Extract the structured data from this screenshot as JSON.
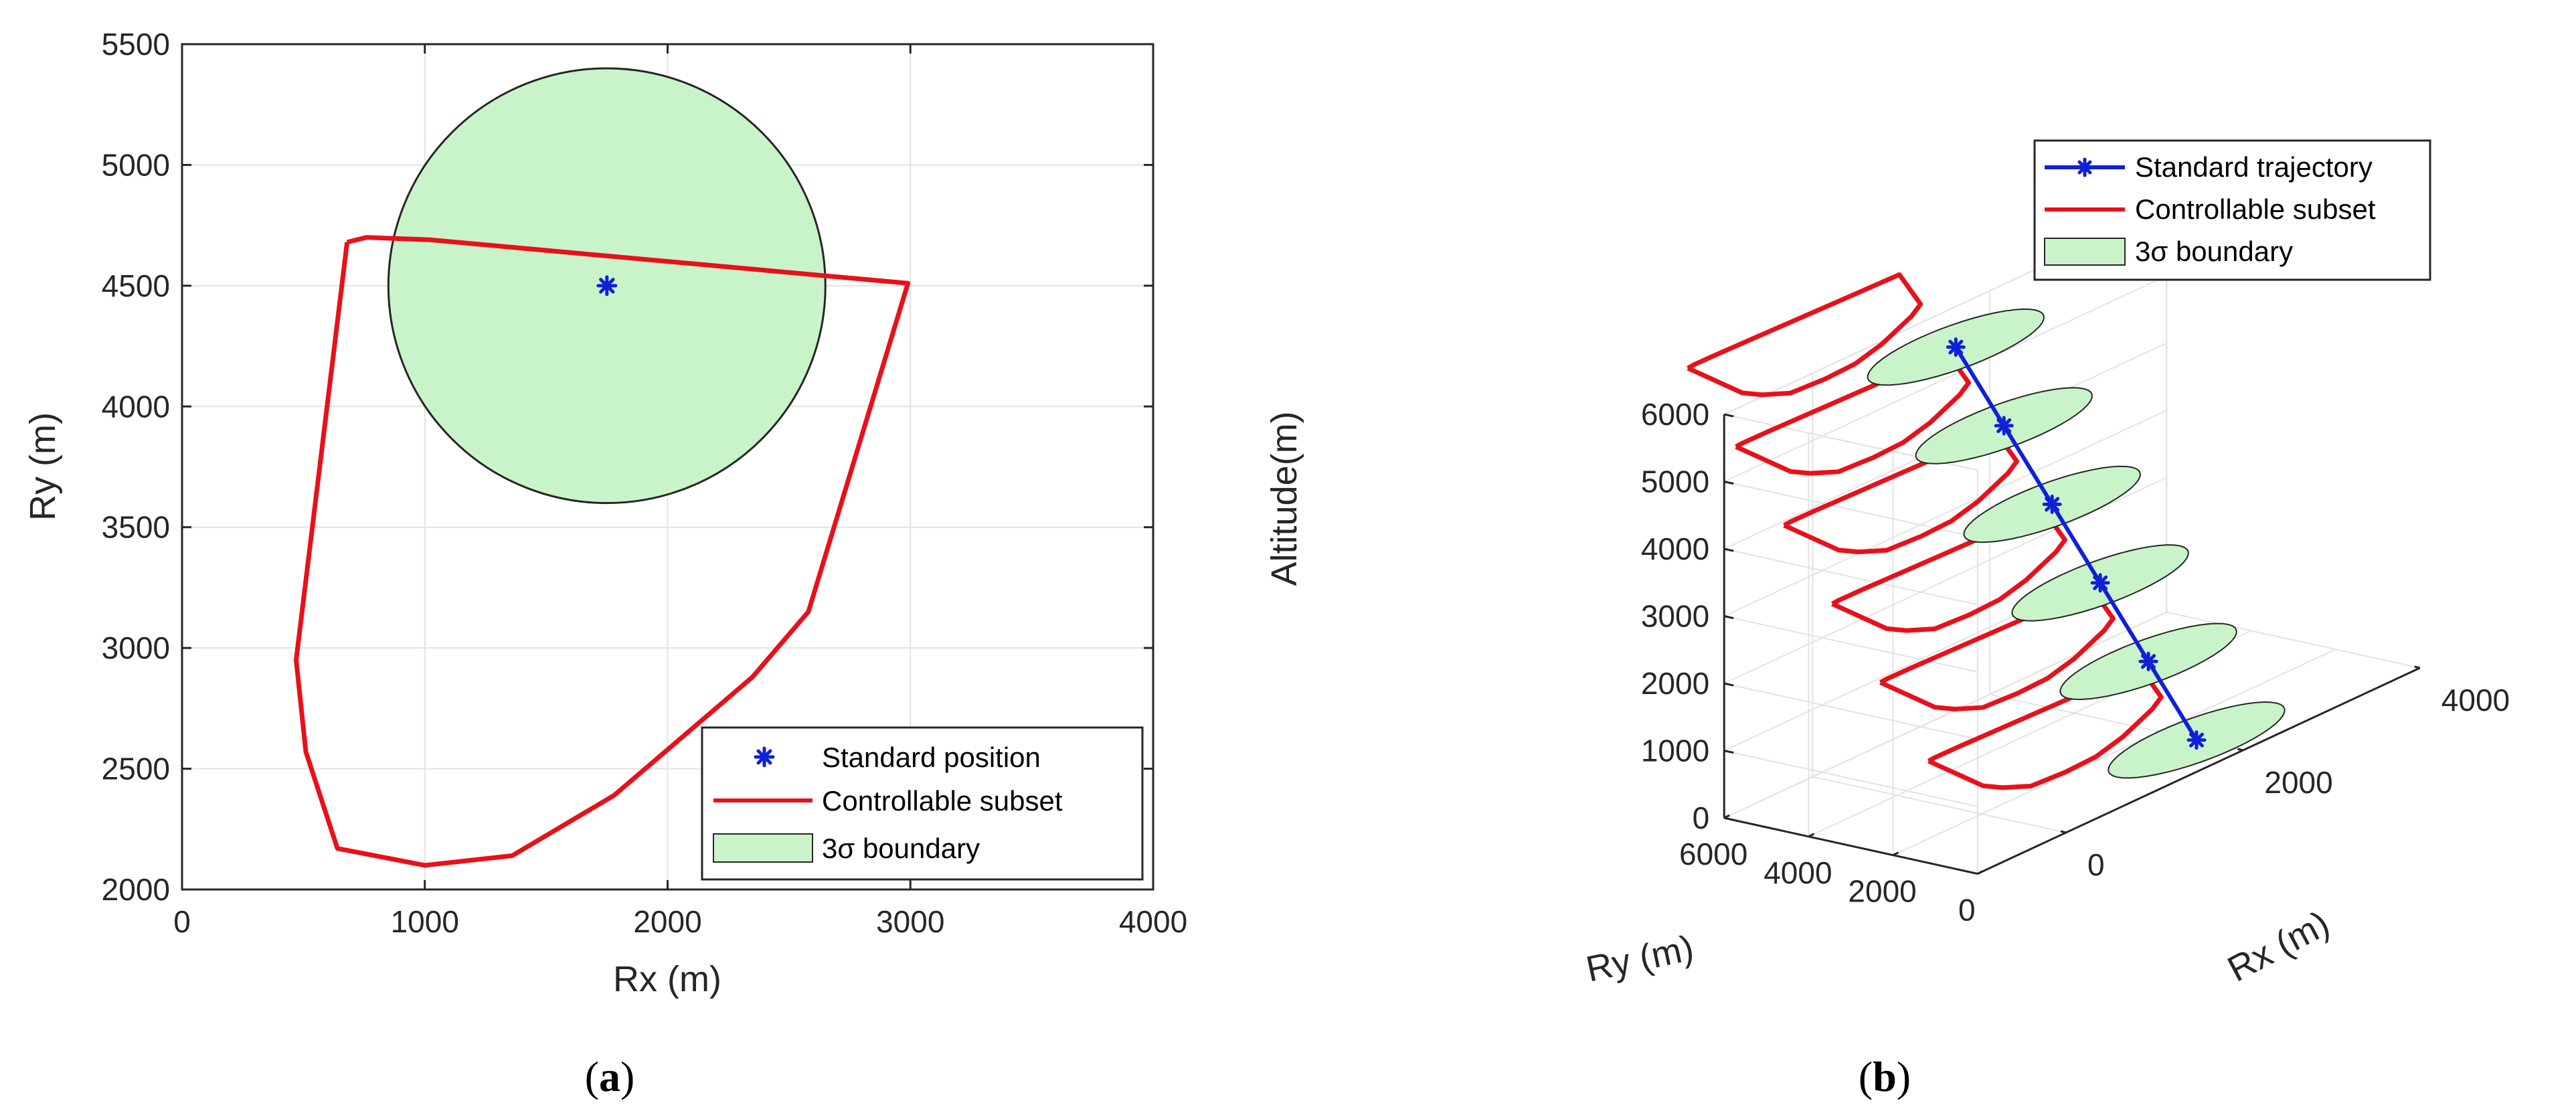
{
  "colors": {
    "subset": "#e8101a",
    "trajectory": "#1020d8",
    "boundary_fill": "#c9f4c9",
    "grid": "#e3e3e3",
    "axis": "#262626"
  },
  "panels": [
    {
      "id": "a",
      "open": "(",
      "letter": "a",
      "close": ")"
    },
    {
      "id": "b",
      "open": "(",
      "letter": "b",
      "close": ")"
    }
  ],
  "chart_data": [
    {
      "id": "a",
      "type": "scatter",
      "xlabel": "Rx (m)",
      "ylabel": "Ry (m)",
      "xlim": [
        0,
        4000
      ],
      "ylim": [
        2000,
        5500
      ],
      "xticks": [
        0,
        1000,
        2000,
        3000,
        4000
      ],
      "yticks": [
        2000,
        2500,
        3000,
        3500,
        4000,
        4500,
        5000,
        5500
      ],
      "grid": true,
      "legend_position": "bottom-right",
      "legend": [
        "Standard position",
        "Controllable subset",
        "3σ boundary"
      ],
      "standard_position": {
        "x": 1750,
        "y": 4500
      },
      "boundary": {
        "center": [
          1750,
          4500
        ],
        "radius": 900
      },
      "controllable_subset": {
        "x": [
          680,
          760,
          1020,
          2990,
          2580,
          2350,
          1780,
          1360,
          1000,
          640,
          510,
          470,
          680
        ],
        "y": [
          4680,
          4700,
          4690,
          4510,
          3150,
          2880,
          2390,
          2140,
          2100,
          2170,
          2570,
          2950,
          4680
        ]
      }
    },
    {
      "id": "b",
      "type": "line",
      "subtype": "3d",
      "xlabel": "Rx (m)",
      "ylabel": "Ry (m)",
      "zlabel": "Altitude(m)",
      "xlim": [
        -1000,
        4000
      ],
      "ylim": [
        0,
        6000
      ],
      "zlim": [
        0,
        6000
      ],
      "xticks": [
        0,
        2000,
        4000
      ],
      "yticks": [
        0,
        2000,
        4000,
        6000
      ],
      "zticks": [
        0,
        1000,
        2000,
        3000,
        4000,
        5000,
        6000
      ],
      "grid": true,
      "legend_position": "top-right",
      "legend": [
        "Standard trajectory",
        "Controllable subset",
        "3σ boundary"
      ],
      "trajectory": {
        "rx": [
          2000,
          1790,
          1580,
          1370,
          1160,
          950
        ],
        "ry": [
          1100,
          1800,
          2500,
          3200,
          3900,
          4600
        ],
        "altitude": [
          0,
          1200,
          2400,
          3600,
          4800,
          6000
        ]
      },
      "boundary_radius": 900,
      "controllable_subset": {
        "rx": [
          680,
          760,
          1020,
          2990,
          2580,
          2350,
          1780,
          1360,
          1000,
          640,
          510,
          470,
          680
        ],
        "ry": [
          4680,
          4700,
          4690,
          4510,
          3150,
          2880,
          2390,
          2140,
          2100,
          2170,
          2570,
          2950,
          4680
        ]
      }
    }
  ]
}
